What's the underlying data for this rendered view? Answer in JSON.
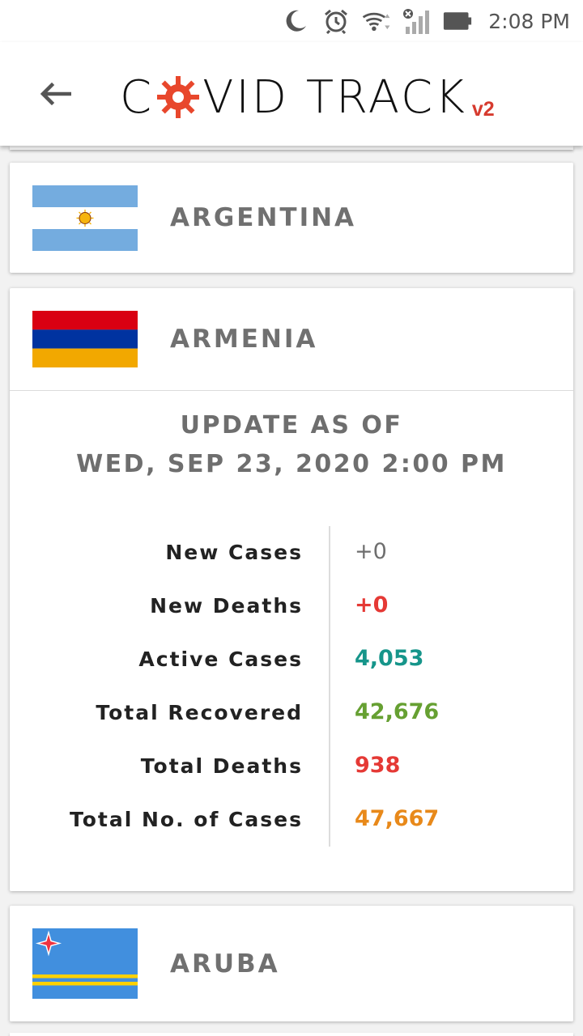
{
  "status_bar": {
    "time": "2:08 PM",
    "icons": [
      "moon-icon",
      "alarm-icon",
      "wifi-icon",
      "cellular-signal-icon",
      "battery-icon"
    ]
  },
  "header": {
    "back_icon": "arrow-left-icon",
    "logo_text_before": "C",
    "logo_text_after": "VID TRACK",
    "logo_version": "v2",
    "accent_color": "#d63a2e"
  },
  "countries": [
    {
      "name": "ARGENTINA",
      "flag": "argentina-flag"
    },
    {
      "name": "ARMENIA",
      "flag": "armenia-flag",
      "expanded": true,
      "update_line1": "UPDATE AS OF",
      "update_line2": "WED, SEP 23, 2020 2:00 PM",
      "stats": [
        {
          "label": "New Cases",
          "value": "+0",
          "color": "#6e6e6e"
        },
        {
          "label": "New Deaths",
          "value": "+0",
          "color": "#e53935"
        },
        {
          "label": "Active Cases",
          "value": "4,053",
          "color": "#16958a"
        },
        {
          "label": "Total Recovered",
          "value": "42,676",
          "color": "#66a032"
        },
        {
          "label": "Total Deaths",
          "value": "938",
          "color": "#e53935"
        },
        {
          "label": "Total No. of Cases",
          "value": "47,667",
          "color": "#e8891a"
        }
      ]
    },
    {
      "name": "ARUBA",
      "flag": "aruba-flag"
    }
  ]
}
